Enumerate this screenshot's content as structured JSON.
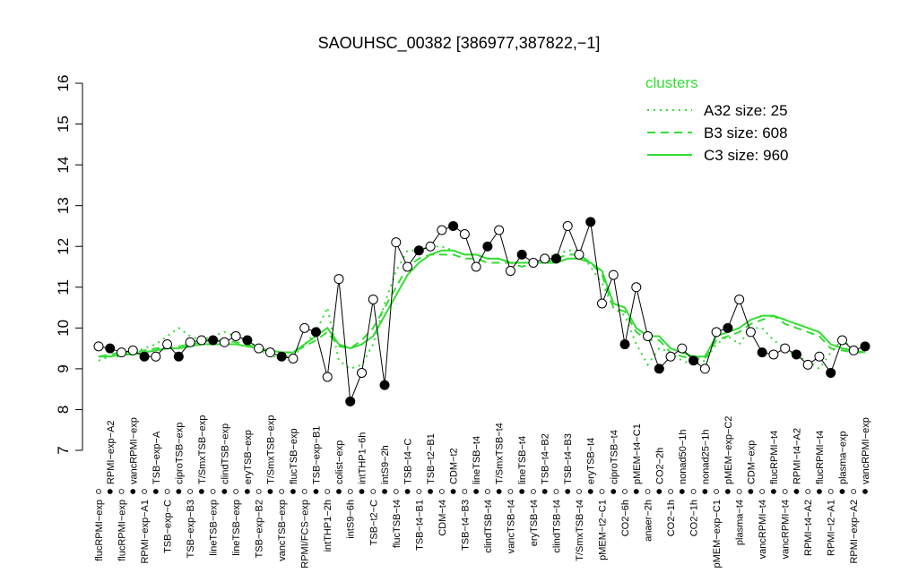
{
  "chart_data": {
    "type": "line",
    "title": "SAOUHSC_00382 [386977,387822,−1]",
    "categories": [
      "flucRPMI−exp",
      "RPMI−exp−A2",
      "flucRPMI−exp",
      "vancRPMI−exp",
      "RPMI−exp−A1",
      "TSB−exp−A",
      "TSB−exp−C",
      "ciproTSB−exp",
      "TSB−exp−B3",
      "T/SmxTSB−exp",
      "lineTSB−exp",
      "clindTSB−exp",
      "lineTSB−exp",
      "eryTSB−exp",
      "TSB−exp−B2",
      "T/SmxTSB−exp",
      "vancTSB−exp",
      "flucTSB−exp",
      "RPMI/FCS−exp",
      "TSB−exp−B1",
      "intTHP1−2h",
      "colist−exp",
      "intS9−6h",
      "intTHP1−6h",
      "TSB−t2−C",
      "intS9−2h",
      "flucTSB−t4",
      "TSB−t4−C",
      "TSB−t4−B1",
      "TSB−t2−B1",
      "CDM−t4",
      "CDM−t2",
      "TSB−t4−B3",
      "lineTSB−t4",
      "clindTSB−t4",
      "T/SmxTSB−t4",
      "vancTSB−t4",
      "lineTSB−t4",
      "eryTSB−t4",
      "TSB−t4−B2",
      "clindTSB−t4",
      "TSB−t4−B3",
      "T/SmxTSB−t4",
      "eryTSB−t4",
      "pMEM−t2−C1",
      "ciproTSB−t4",
      "CO2−6h",
      "pMEM−t4−C1",
      "anaer−2h",
      "CO2−2h",
      "CO2−1h",
      "nonad50−1h",
      "CO2−1h",
      "nonad25−1h",
      "pMEM−exp−C1",
      "pMEM−exp−C2",
      "plasma−t4",
      "CDM−exp",
      "vancRPMI−t4",
      "flucRPMI−t4",
      "vancRPMI−t4",
      "RPMI−t4−A2",
      "RPMI−t4−A2",
      "flucRPMI−t4",
      "RPMI−t2−A1",
      "plasma−exp",
      "RPMI−exp−A2",
      "vancRPMI−exp"
    ],
    "values": [
      9.55,
      9.5,
      9.4,
      9.45,
      9.3,
      9.3,
      9.6,
      9.3,
      9.65,
      9.7,
      9.7,
      9.65,
      9.8,
      9.7,
      9.5,
      9.4,
      9.3,
      9.25,
      10.0,
      9.9,
      8.8,
      11.2,
      8.2,
      8.9,
      10.7,
      8.6,
      12.1,
      11.5,
      11.9,
      12.0,
      12.4,
      12.5,
      12.3,
      11.5,
      12.0,
      12.4,
      11.4,
      11.8,
      11.6,
      11.7,
      11.7,
      12.5,
      11.8,
      12.6,
      10.6,
      11.3,
      9.6,
      11.0,
      9.8,
      9.0,
      9.3,
      9.5,
      9.2,
      9.0,
      9.9,
      10.0,
      10.7,
      9.9,
      9.4,
      9.35,
      9.5,
      9.35,
      9.1,
      9.3,
      8.9,
      9.7,
      9.45,
      9.55
    ],
    "series": [
      {
        "name": "A32 size: 25",
        "color": "#33dd33",
        "dash": "dotted",
        "values": [
          9.2,
          9.3,
          9.3,
          9.4,
          9.5,
          9.6,
          9.8,
          10.0,
          9.8,
          9.7,
          9.8,
          9.9,
          9.8,
          9.7,
          9.5,
          9.3,
          9.3,
          9.3,
          9.6,
          9.9,
          10.5,
          9.2,
          9.0,
          9.1,
          9.6,
          10.6,
          11.4,
          11.9,
          11.9,
          12.0,
          12.0,
          11.9,
          11.8,
          11.8,
          11.7,
          11.7,
          11.6,
          11.6,
          11.6,
          11.7,
          11.8,
          11.9,
          11.9,
          11.5,
          11.1,
          10.5,
          10.3,
          9.6,
          9.1,
          9.5,
          9.4,
          9.2,
          9.1,
          9.2,
          9.6,
          9.8,
          9.6,
          10.0,
          10.0,
          9.7,
          9.5,
          9.3,
          9.2,
          9.0,
          9.4,
          9.7,
          9.5,
          9.4
        ]
      },
      {
        "name": "B3 size: 608",
        "color": "#33dd33",
        "dash": "dashed",
        "values": [
          9.3,
          9.35,
          9.4,
          9.4,
          9.45,
          9.5,
          9.5,
          9.55,
          9.6,
          9.65,
          9.7,
          9.7,
          9.65,
          9.6,
          9.5,
          9.45,
          9.4,
          9.4,
          9.55,
          9.7,
          9.9,
          9.55,
          9.5,
          9.7,
          10.0,
          10.5,
          11.0,
          11.5,
          11.7,
          11.8,
          11.8,
          11.8,
          11.7,
          11.7,
          11.6,
          11.6,
          11.6,
          11.5,
          11.6,
          11.6,
          11.7,
          11.8,
          11.8,
          11.6,
          11.3,
          10.5,
          10.4,
          9.9,
          9.7,
          9.7,
          9.4,
          9.3,
          9.25,
          9.25,
          9.7,
          9.8,
          9.9,
          10.1,
          10.2,
          10.3,
          10.1,
          10.0,
          9.9,
          9.8,
          9.5,
          9.45,
          9.4,
          9.4
        ]
      },
      {
        "name": "C3 size: 960",
        "color": "#33dd33",
        "dash": "solid",
        "values": [
          9.3,
          9.3,
          9.35,
          9.35,
          9.4,
          9.45,
          9.5,
          9.5,
          9.55,
          9.6,
          9.6,
          9.6,
          9.6,
          9.55,
          9.5,
          9.45,
          9.4,
          9.4,
          9.6,
          9.8,
          10.0,
          9.6,
          9.5,
          9.6,
          9.8,
          10.3,
          10.8,
          11.3,
          11.6,
          11.8,
          11.9,
          11.9,
          11.8,
          11.8,
          11.7,
          11.7,
          11.6,
          11.6,
          11.6,
          11.6,
          11.6,
          11.7,
          11.7,
          11.6,
          11.4,
          10.6,
          10.5,
          10.0,
          9.8,
          9.8,
          9.5,
          9.4,
          9.3,
          9.3,
          9.8,
          9.9,
          10.0,
          10.2,
          10.3,
          10.3,
          10.2,
          10.1,
          10.0,
          9.9,
          9.6,
          9.5,
          9.45,
          9.4
        ]
      }
    ],
    "legend_title": "clusters",
    "ylim": [
      7,
      16
    ],
    "yticks": [
      7,
      8,
      9,
      10,
      11,
      12,
      13,
      14,
      15,
      16
    ]
  }
}
